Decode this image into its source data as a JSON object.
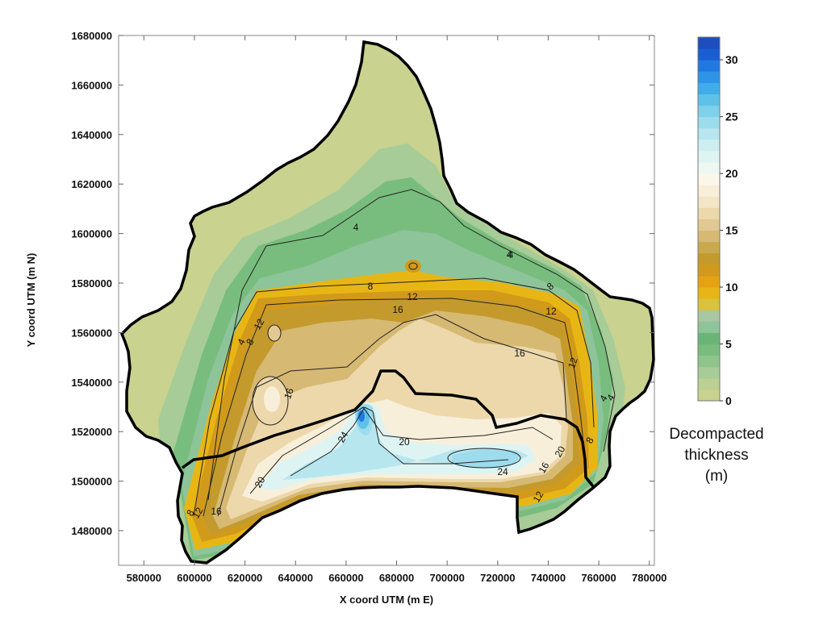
{
  "map": {
    "x_axis_title": "X coord UTM (m E)",
    "y_axis_title": "Y coord UTM (m N)",
    "x_ticks": [
      "580000",
      "600000",
      "620000",
      "640000",
      "660000",
      "680000",
      "700000",
      "720000",
      "740000",
      "760000",
      "780000"
    ],
    "y_ticks": [
      "1480000",
      "1500000",
      "1520000",
      "1540000",
      "1560000",
      "1580000",
      "1600000",
      "1620000",
      "1640000",
      "1660000",
      "1680000"
    ],
    "x_range": [
      570000,
      782000
    ],
    "y_range": [
      1466000,
      1680000
    ],
    "contour_labels": [
      "4",
      "4",
      "8",
      "12",
      "16",
      "4",
      "8",
      "12",
      "16",
      "4",
      "8",
      "12",
      "16",
      "24",
      "20",
      "16",
      "20",
      "24",
      "20",
      "16",
      "12",
      "12",
      "8",
      "4",
      "4",
      "8",
      "12"
    ]
  },
  "colorbar": {
    "ticks": [
      "0",
      "5",
      "10",
      "15",
      "20",
      "25",
      "30"
    ],
    "min": 0,
    "max": 32,
    "title_lines": [
      "Decompacted",
      "thickness",
      "(m)"
    ],
    "colors": [
      "#c9d28e",
      "#bcd093",
      "#a7cc98",
      "#8fc48b",
      "#78bd7d",
      "#6bb477",
      "#8dc49a",
      "#a8c7a2",
      "#d9c23c",
      "#e8b614",
      "#e5a312",
      "#d29a1b",
      "#c49a2d",
      "#c9a84e",
      "#d6b973",
      "#e2c892",
      "#ecd8ab",
      "#f3e5c5",
      "#f8efdb",
      "#fbf6ea",
      "#eef8f3",
      "#def4f2",
      "#cdeef0",
      "#b7e6ee",
      "#9cdced",
      "#7fd0ea",
      "#5fc1e7",
      "#3fadea",
      "#2f93e7",
      "#2278e1",
      "#1a5ed4",
      "#1d4dbf"
    ]
  }
}
